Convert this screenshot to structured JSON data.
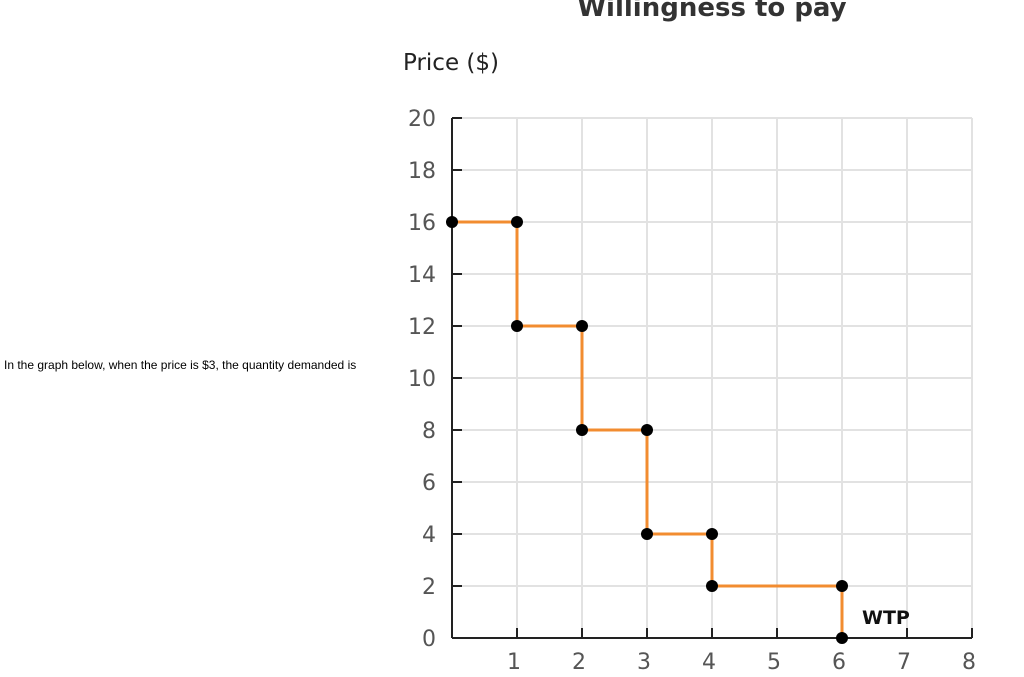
{
  "question": {
    "text": "In the graph below, when the price is $3, the quantity demanded is"
  },
  "chart_data": {
    "type": "line",
    "title": "Willingness to pay",
    "ylabel": "Price ($)",
    "xlabel": "",
    "xlim": [
      0,
      8
    ],
    "ylim": [
      0,
      20
    ],
    "x_ticks": [
      1,
      2,
      3,
      4,
      5,
      6,
      7,
      8
    ],
    "y_ticks": [
      0,
      2,
      4,
      6,
      8,
      10,
      12,
      14,
      16,
      18,
      20
    ],
    "grid": true,
    "series": [
      {
        "name": "WTP",
        "color": "#f28c30",
        "points": [
          [
            0,
            16
          ],
          [
            1,
            16
          ],
          [
            1,
            12
          ],
          [
            2,
            12
          ],
          [
            2,
            8
          ],
          [
            3,
            8
          ],
          [
            3,
            4
          ],
          [
            4,
            4
          ],
          [
            4,
            2
          ],
          [
            6,
            2
          ],
          [
            6,
            0
          ]
        ]
      }
    ],
    "series_label": "WTP"
  }
}
